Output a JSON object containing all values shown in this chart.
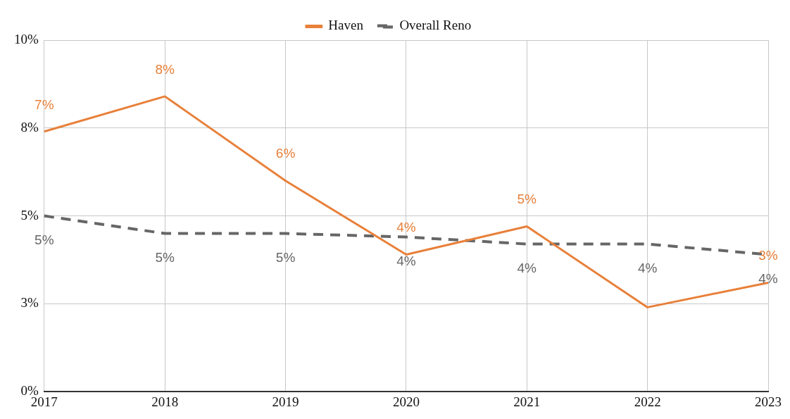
{
  "chart_data": {
    "type": "line",
    "categories": [
      "2017",
      "2018",
      "2019",
      "2020",
      "2021",
      "2022",
      "2023"
    ],
    "series": [
      {
        "name": "Haven",
        "color": "#e8803a",
        "line_style": "solid",
        "values": [
          7.4,
          8.4,
          6.0,
          3.9,
          4.7,
          2.4,
          3.1
        ],
        "value_labels": [
          "7%",
          "8%",
          "6%",
          "4%",
          "5%",
          null,
          "3%"
        ]
      },
      {
        "name": "Overall Reno",
        "color": "#666666",
        "line_style": "dashed",
        "values": [
          5.0,
          4.5,
          4.5,
          4.4,
          4.2,
          4.2,
          3.9
        ],
        "value_labels": [
          "5%",
          "5%",
          "5%",
          "4%",
          "4%",
          "4%",
          "4%"
        ]
      }
    ],
    "ylim": [
      0,
      10
    ],
    "yticks": [
      {
        "value": 0,
        "label": "0%"
      },
      {
        "value": 2.5,
        "label": "3%"
      },
      {
        "value": 5,
        "label": "5%"
      },
      {
        "value": 7.5,
        "label": "8%"
      },
      {
        "value": 10,
        "label": "10%"
      }
    ],
    "grid": true,
    "legend": "top",
    "marker": "none"
  }
}
